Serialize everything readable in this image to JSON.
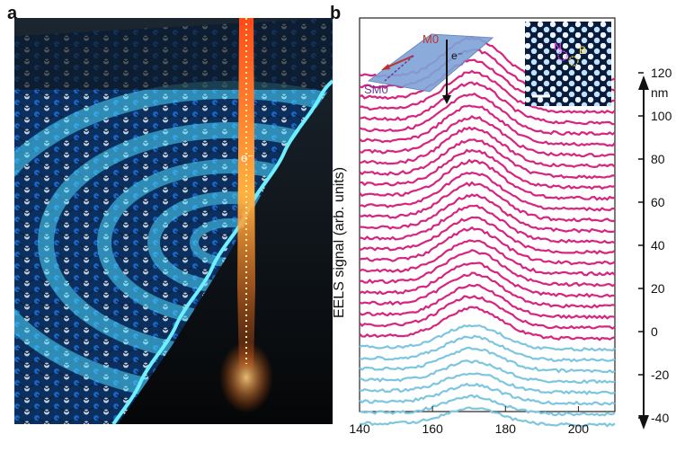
{
  "panel_a": {
    "label": "a",
    "beam_label": "e⁻"
  },
  "panel_b": {
    "label": "b",
    "inset_geometry": {
      "labels": [
        "M0",
        "e⁻",
        "SM0"
      ]
    },
    "inset_atomic_image": {
      "labels": [
        "N",
        "B"
      ]
    }
  },
  "chart_data": {
    "type": "line",
    "title": "",
    "xlabel": "",
    "ylabel": "EELS signal (arb. units)",
    "xlim": [
      140,
      210
    ],
    "x_ticks": [
      140,
      160,
      180,
      200
    ],
    "right_axis": {
      "unit": "nm",
      "ticks": [
        -40,
        -20,
        0,
        20,
        40,
        60,
        80,
        100,
        120
      ]
    },
    "positions_nm": [
      120,
      115,
      110,
      105,
      100,
      95,
      90,
      85,
      80,
      75,
      70,
      65,
      60,
      55,
      50,
      45,
      40,
      35,
      30,
      25,
      20,
      15,
      10,
      5,
      0,
      -5,
      -10,
      -15,
      -20,
      -25,
      -30,
      -35,
      -40
    ],
    "peak_energy": 171,
    "peak_amplitudes": [
      45,
      44,
      44,
      43,
      43,
      42,
      42,
      41,
      41,
      40,
      40,
      40,
      39,
      39,
      38,
      38,
      37,
      37,
      36,
      36,
      35,
      35,
      34,
      34,
      33,
      26,
      25,
      24,
      22,
      21,
      20,
      19,
      18
    ],
    "colors": {
      "near_region": "#d6247f",
      "far_region": "#7cc6e0"
    }
  }
}
